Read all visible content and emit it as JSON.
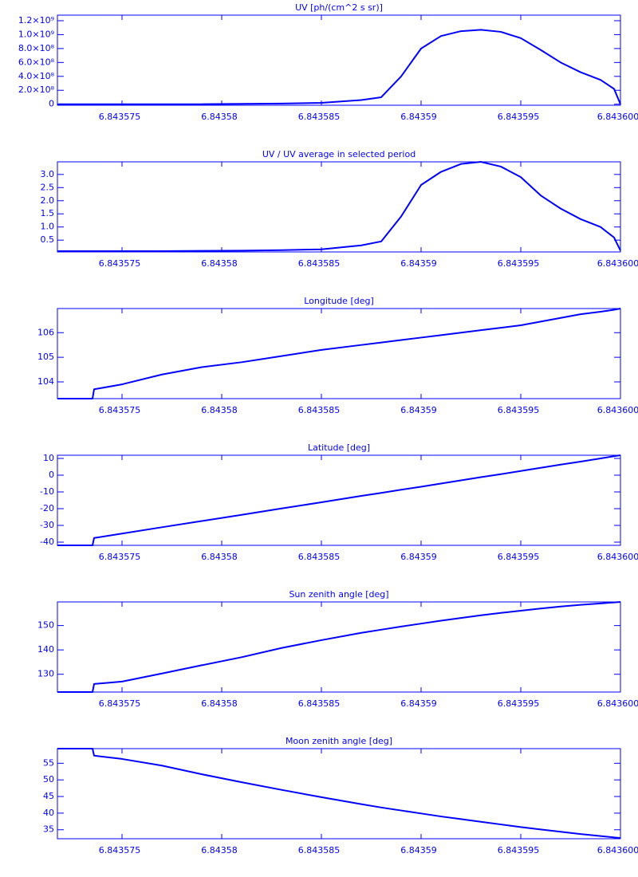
{
  "chart_data": [
    {
      "type": "line",
      "title": "UV [ph/(cm^2 s sr)]",
      "color": "#0000ff",
      "x": [
        6.84357176,
        6.84357352,
        6.8435736,
        6.843575,
        6.843577,
        6.843579,
        6.843581,
        6.843583,
        6.843585,
        6.843587,
        6.843588,
        6.843589,
        6.84359,
        6.843591,
        6.843592,
        6.843593,
        6.843594,
        6.843595,
        6.843596,
        6.843597,
        6.843598,
        6.843599,
        6.84359968,
        6.8436
      ],
      "values": [
        0,
        0,
        0,
        0,
        0,
        0,
        5000000,
        10000000,
        20000000,
        60000000,
        100000000,
        400000000,
        800000000,
        980000000,
        1050000000,
        1070000000,
        1040000000,
        950000000,
        780000000,
        600000000,
        460000000,
        350000000,
        220000000,
        0
      ],
      "xlim": [
        6.84357176,
        6.8436
      ],
      "xticks": [
        6.843575,
        6.84358,
        6.843585,
        6.84359,
        6.843595,
        {
          "value": 6.8436,
          "label": "6.843600"
        }
      ],
      "ylim": [
        -15000000,
        1280000000
      ],
      "yticks": [
        0,
        {
          "value": 200000000,
          "label": "2.0×10⁸"
        },
        {
          "value": 400000000,
          "label": "4.0×10⁸"
        },
        {
          "value": 600000000,
          "label": "6.0×10⁸"
        },
        {
          "value": 800000000,
          "label": "8.0×10⁸"
        },
        {
          "value": 1000000000,
          "label": "1.0×10⁹"
        },
        {
          "value": 1200000000,
          "label": "1.2×10⁹"
        }
      ]
    },
    {
      "type": "line",
      "title": "UV / UV average in selected period",
      "color": "#0000ff",
      "x": [
        6.84357176,
        6.84357352,
        6.8435736,
        6.843575,
        6.843577,
        6.843579,
        6.843581,
        6.843583,
        6.843585,
        6.843587,
        6.843588,
        6.843589,
        6.84359,
        6.843591,
        6.843592,
        6.843593,
        6.843594,
        6.843595,
        6.843596,
        6.843597,
        6.843598,
        6.843599,
        6.84359968,
        6.8436
      ],
      "values": [
        0.08,
        0.08,
        0.08,
        0.08,
        0.08,
        0.09,
        0.1,
        0.12,
        0.15,
        0.3,
        0.45,
        1.4,
        2.6,
        3.1,
        3.4,
        3.48,
        3.3,
        2.9,
        2.2,
        1.7,
        1.3,
        1.0,
        0.6,
        0.1
      ],
      "xlim": [
        6.84357176,
        6.8436
      ],
      "xticks": [
        6.843575,
        6.84358,
        6.843585,
        6.84359,
        6.843595,
        {
          "value": 6.8436,
          "label": "6.843600"
        }
      ],
      "ylim": [
        0.05,
        3.48
      ],
      "yticks": [
        0.5,
        {
          "value": 1,
          "label": "1.0"
        },
        1.5,
        {
          "value": 2,
          "label": "2.0"
        },
        2.5,
        {
          "value": 3,
          "label": "3.0"
        }
      ]
    },
    {
      "type": "line",
      "title": "Longitude [deg]",
      "color": "#0000ff",
      "x": [
        6.84357176,
        6.84357352,
        6.8435736,
        6.843575,
        6.843577,
        6.843579,
        6.843581,
        6.843583,
        6.843585,
        6.843587,
        6.843588,
        6.843589,
        6.84359,
        6.843591,
        6.843592,
        6.843593,
        6.843594,
        6.843595,
        6.843596,
        6.843597,
        6.843598,
        6.843599,
        6.84359968,
        6.8436
      ],
      "values": [
        103.32,
        103.32,
        103.7,
        103.9,
        104.3,
        104.6,
        104.8,
        105.05,
        105.3,
        105.5,
        105.6,
        105.7,
        105.8,
        105.9,
        106.0,
        106.1,
        106.2,
        106.3,
        106.45,
        106.6,
        106.75,
        106.85,
        106.93,
        106.98
      ],
      "xlim": [
        6.84357176,
        6.8436
      ],
      "xticks": [
        6.843575,
        6.84358,
        6.843585,
        6.84359,
        6.843595,
        {
          "value": 6.8436,
          "label": "6.843600"
        }
      ],
      "ylim": [
        103.32,
        106.98
      ],
      "yticks": [
        104,
        105,
        106
      ]
    },
    {
      "type": "line",
      "title": "Latitude [deg]",
      "color": "#0000ff",
      "x": [
        6.84357176,
        6.84357352,
        6.8435736,
        6.843575,
        6.843577,
        6.843579,
        6.843581,
        6.843583,
        6.843585,
        6.843587,
        6.843588,
        6.843589,
        6.84359,
        6.843591,
        6.843592,
        6.843593,
        6.843594,
        6.843595,
        6.843596,
        6.843597,
        6.843598,
        6.843599,
        6.84359968,
        6.8436
      ],
      "values": [
        -41.9,
        -41.9,
        -37.5,
        -34.9,
        -31.1,
        -27.4,
        -23.7,
        -19.9,
        -16.2,
        -12.4,
        -10.6,
        -8.7,
        -6.9,
        -5.0,
        -3.1,
        -1.2,
        0.6,
        2.5,
        4.4,
        6.3,
        8.1,
        10.0,
        11.3,
        11.9
      ],
      "xlim": [
        6.84357176,
        6.8436
      ],
      "xticks": [
        6.843575,
        6.84358,
        6.843585,
        6.84359,
        6.843595,
        {
          "value": 6.8436,
          "label": "6.843600"
        }
      ],
      "ylim": [
        -41.9,
        11.9
      ],
      "yticks": [
        -40,
        -30,
        -20,
        -10,
        0,
        10
      ]
    },
    {
      "type": "line",
      "title": "Sun zenith angle [deg]",
      "color": "#0000ff",
      "x": [
        6.84357176,
        6.84357352,
        6.8435736,
        6.843575,
        6.843577,
        6.843579,
        6.843581,
        6.843583,
        6.843585,
        6.843587,
        6.843588,
        6.843589,
        6.84359,
        6.843591,
        6.843592,
        6.843593,
        6.843594,
        6.843595,
        6.843596,
        6.843597,
        6.843598,
        6.843599,
        6.84359968,
        6.8436
      ],
      "values": [
        122.7,
        122.7,
        126,
        127,
        130.3,
        133.7,
        137,
        140.8,
        144,
        147,
        148.3,
        149.6,
        150.8,
        152,
        153.1,
        154.2,
        155.2,
        156.1,
        157,
        157.8,
        158.5,
        159.1,
        159.5,
        159.7
      ],
      "xlim": [
        6.84357176,
        6.8436
      ],
      "xticks": [
        6.843575,
        6.84358,
        6.843585,
        6.84359,
        6.843595,
        {
          "value": 6.8436,
          "label": "6.843600"
        }
      ],
      "ylim": [
        122.7,
        159.7
      ],
      "yticks": [
        130,
        140,
        150
      ]
    },
    {
      "type": "line",
      "title": "Moon zenith angle [deg]",
      "color": "#0000ff",
      "x": [
        6.84357176,
        6.84357352,
        6.8435736,
        6.843575,
        6.843577,
        6.843579,
        6.843581,
        6.843583,
        6.843585,
        6.843587,
        6.843588,
        6.843589,
        6.84359,
        6.843591,
        6.843592,
        6.843593,
        6.843594,
        6.843595,
        6.843596,
        6.843597,
        6.843598,
        6.843599,
        6.84359968,
        6.8436
      ],
      "values": [
        59.4,
        59.4,
        57.3,
        56.3,
        54.3,
        51.7,
        49.3,
        47,
        44.8,
        42.7,
        41.7,
        40.8,
        39.9,
        39,
        38.2,
        37.4,
        36.6,
        35.8,
        35.1,
        34.4,
        33.7,
        33.1,
        32.7,
        32.5
      ],
      "xlim": [
        6.84357176,
        6.8436
      ],
      "xticks": [
        6.843575,
        6.84358,
        6.843585,
        6.84359,
        6.843595,
        {
          "value": 6.8436,
          "label": "6.843600"
        }
      ],
      "ylim": [
        32.3,
        59.4
      ],
      "yticks": [
        35,
        40,
        45,
        50,
        55
      ]
    }
  ]
}
